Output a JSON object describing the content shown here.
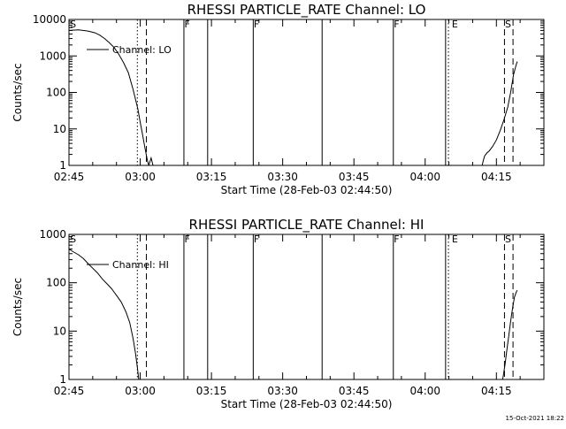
{
  "chart_data": [
    {
      "type": "line",
      "title": "RHESSI PARTICLE_RATE Channel: LO",
      "xlabel": "Start Time (28-Feb-03 02:44:50)",
      "ylabel": "Counts/sec",
      "yscale": "log",
      "ylim": [
        1,
        10000
      ],
      "xlim_minutes": [
        0,
        100
      ],
      "xticks": [
        {
          "t": 0,
          "label": "02:45"
        },
        {
          "t": 15,
          "label": "03:00"
        },
        {
          "t": 30,
          "label": "03:15"
        },
        {
          "t": 45,
          "label": "03:30"
        },
        {
          "t": 60,
          "label": "03:45"
        },
        {
          "t": 75,
          "label": "04:00"
        },
        {
          "t": 90,
          "label": "04:15"
        }
      ],
      "yticks": [
        {
          "v": 1,
          "label": "1"
        },
        {
          "v": 10,
          "label": "10"
        },
        {
          "v": 100,
          "label": "100"
        },
        {
          "v": 1000,
          "label": "1000"
        },
        {
          "v": 10000,
          "label": "10000"
        }
      ],
      "legend_label": "Channel: LO",
      "legend_position": "top-left",
      "vlines": [
        {
          "t": 14.4,
          "style": "dotted"
        },
        {
          "t": 16.3,
          "style": "dashed"
        },
        {
          "t": 24.2,
          "style": "solid"
        },
        {
          "t": 29.2,
          "style": "solid"
        },
        {
          "t": 38.8,
          "style": "solid"
        },
        {
          "t": 53.3,
          "style": "solid"
        },
        {
          "t": 68.3,
          "style": "solid"
        },
        {
          "t": 79.3,
          "style": "solid"
        },
        {
          "t": 79.9,
          "style": "dotted"
        },
        {
          "t": 91.7,
          "style": "dashed"
        },
        {
          "t": 93.5,
          "style": "dashed"
        }
      ],
      "markers": [
        {
          "t": 0.2,
          "label": "S"
        },
        {
          "t": 24.3,
          "label": "F"
        },
        {
          "t": 38.9,
          "label": "F"
        },
        {
          "t": 68.4,
          "label": "F"
        },
        {
          "t": 80.6,
          "label": "E"
        },
        {
          "t": 91.8,
          "label": "S"
        }
      ],
      "series": [
        {
          "segments": [
            [
              [
                0,
                5000
              ],
              [
                2,
                5200
              ],
              [
                4,
                4800
              ],
              [
                5.5,
                4300
              ],
              [
                6.5,
                3700
              ],
              [
                7.5,
                3000
              ],
              [
                8.5,
                2300
              ],
              [
                9.5,
                1700
              ],
              [
                10.5,
                1100
              ],
              [
                11.5,
                650
              ],
              [
                12.5,
                350
              ],
              [
                13.5,
                120
              ],
              [
                14.5,
                35
              ],
              [
                15.0,
                15
              ],
              [
                15.5,
                7
              ],
              [
                16.0,
                3
              ],
              [
                16.5,
                1.4
              ],
              [
                17.0,
                0.8
              ]
            ],
            [
              [
                16.8,
                1.0
              ],
              [
                17.3,
                1.6
              ],
              [
                17.7,
                1.0
              ],
              [
                18.0,
                0.7
              ]
            ],
            [
              [
                87.0,
                1
              ],
              [
                87.2,
                1.3
              ],
              [
                87.5,
                1.8
              ],
              [
                88.0,
                2.2
              ],
              [
                88.5,
                2.5
              ],
              [
                89.2,
                3.3
              ],
              [
                90.0,
                5
              ],
              [
                90.8,
                9
              ],
              [
                91.6,
                18
              ],
              [
                92.4,
                40
              ],
              [
                93.0,
                100
              ],
              [
                93.6,
                300
              ],
              [
                94.2,
                600
              ],
              [
                94.4,
                700
              ]
            ]
          ]
        }
      ]
    },
    {
      "type": "line",
      "title": "RHESSI PARTICLE_RATE Channel: HI",
      "xlabel": "Start Time (28-Feb-03 02:44:50)",
      "ylabel": "Counts/sec",
      "yscale": "log",
      "ylim": [
        1,
        1000
      ],
      "xlim_minutes": [
        0,
        100
      ],
      "xticks": [
        {
          "t": 0,
          "label": "02:45"
        },
        {
          "t": 15,
          "label": "03:00"
        },
        {
          "t": 30,
          "label": "03:15"
        },
        {
          "t": 45,
          "label": "03:30"
        },
        {
          "t": 60,
          "label": "03:45"
        },
        {
          "t": 75,
          "label": "04:00"
        },
        {
          "t": 90,
          "label": "04:15"
        }
      ],
      "yticks": [
        {
          "v": 1,
          "label": "1"
        },
        {
          "v": 10,
          "label": "10"
        },
        {
          "v": 100,
          "label": "100"
        },
        {
          "v": 1000,
          "label": "1000"
        }
      ],
      "legend_label": "Channel: HI",
      "legend_position": "top-left",
      "vlines": [
        {
          "t": 14.4,
          "style": "dotted"
        },
        {
          "t": 16.3,
          "style": "dashed"
        },
        {
          "t": 24.2,
          "style": "solid"
        },
        {
          "t": 29.2,
          "style": "solid"
        },
        {
          "t": 38.8,
          "style": "solid"
        },
        {
          "t": 53.3,
          "style": "solid"
        },
        {
          "t": 68.3,
          "style": "solid"
        },
        {
          "t": 79.3,
          "style": "solid"
        },
        {
          "t": 79.9,
          "style": "dotted"
        },
        {
          "t": 91.7,
          "style": "dashed"
        },
        {
          "t": 93.5,
          "style": "dashed"
        }
      ],
      "markers": [
        {
          "t": 0.2,
          "label": "S"
        },
        {
          "t": 24.3,
          "label": "F"
        },
        {
          "t": 38.9,
          "label": "F"
        },
        {
          "t": 68.4,
          "label": "F"
        },
        {
          "t": 80.6,
          "label": "E"
        },
        {
          "t": 91.8,
          "label": "S"
        }
      ],
      "series": [
        {
          "segments": [
            [
              [
                0,
                500
              ],
              [
                1,
                430
              ],
              [
                2,
                380
              ],
              [
                3,
                320
              ],
              [
                4,
                250
              ],
              [
                5,
                200
              ],
              [
                6,
                160
              ],
              [
                7,
                120
              ],
              [
                8,
                95
              ],
              [
                9,
                75
              ],
              [
                10,
                55
              ],
              [
                11,
                40
              ],
              [
                12,
                25
              ],
              [
                12.8,
                15
              ],
              [
                13.5,
                7
              ],
              [
                14.0,
                3.5
              ],
              [
                14.4,
                1.8
              ],
              [
                14.7,
                1.0
              ],
              [
                15.0,
                0.6
              ]
            ],
            [
              [
                91.0,
                0.8
              ],
              [
                91.4,
                1.1
              ],
              [
                91.8,
                2
              ],
              [
                92.2,
                4
              ],
              [
                92.6,
                8
              ],
              [
                93.0,
                16
              ],
              [
                93.4,
                30
              ],
              [
                93.8,
                50
              ],
              [
                94.2,
                65
              ],
              [
                94.4,
                70
              ]
            ]
          ]
        }
      ]
    }
  ],
  "footer": {
    "timestamp": "15-Oct-2021 18:22"
  }
}
